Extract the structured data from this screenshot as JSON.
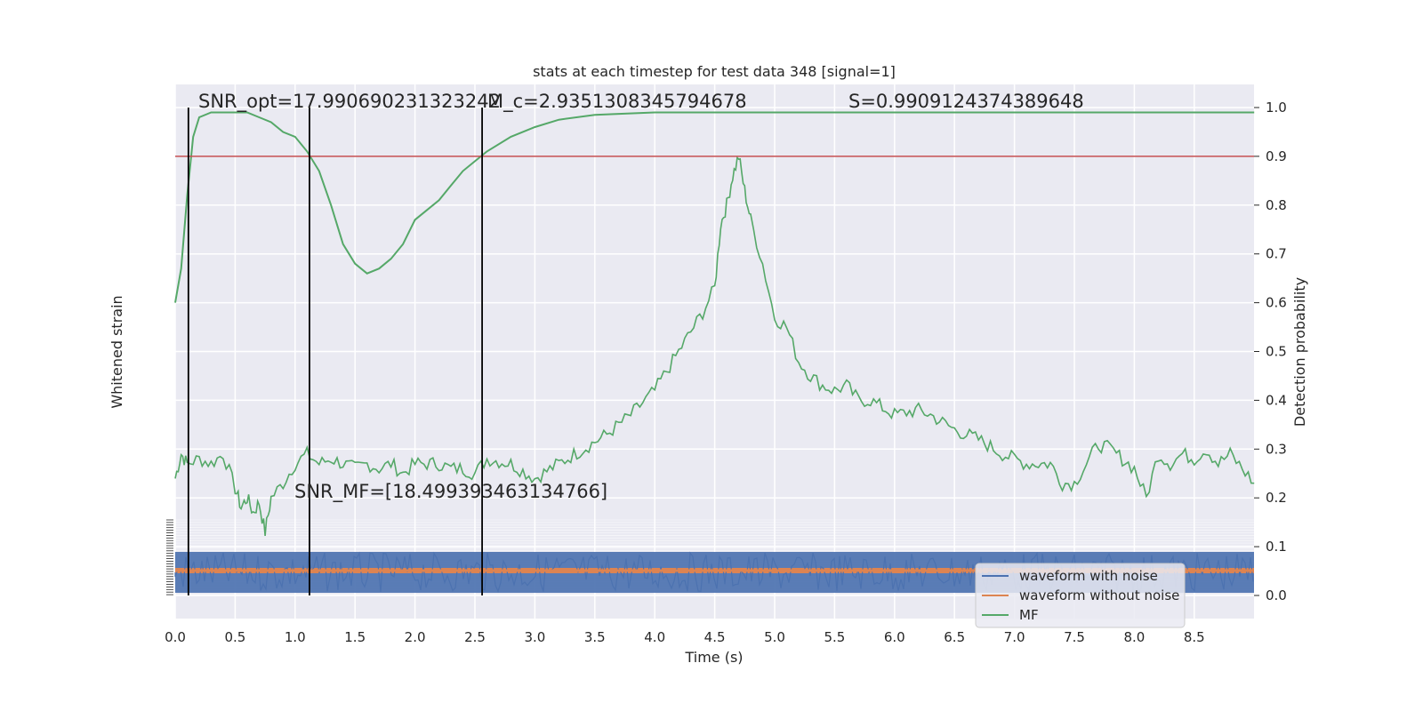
{
  "chart_data": {
    "type": "line",
    "title": "stats at each timestep for test data 348 [signal=1]",
    "xlabel": "Time (s)",
    "ylabel_left": "Whitened strain",
    "ylabel_right": "Detection probability",
    "xlim": [
      0,
      9.0
    ],
    "ylim_right": [
      -0.05,
      1.05
    ],
    "x_ticks": [
      "0.0",
      "0.5",
      "1.0",
      "1.5",
      "2.0",
      "2.5",
      "3.0",
      "3.5",
      "4.0",
      "4.5",
      "5.0",
      "5.5",
      "6.0",
      "6.5",
      "7.0",
      "7.5",
      "8.0",
      "8.5"
    ],
    "y_ticks_right": [
      "0.0",
      "0.1",
      "0.2",
      "0.3",
      "0.4",
      "0.5",
      "0.6",
      "0.7",
      "0.8",
      "0.9",
      "1.0"
    ],
    "threshold": 0.9,
    "threshold_color": "#c44e52",
    "vlines_x": [
      0.11,
      1.12,
      2.56
    ],
    "annotations": {
      "snr_opt": "SNR_opt=17.990690231323242",
      "mc": "M_c=2.9351308345794678",
      "s": "S=0.9909124374389648",
      "snr_mf": "SNR_MF=[18.499393463134766]"
    },
    "legend": [
      "waveform with noise",
      "waveform without noise",
      "MF"
    ],
    "legend_position": "lower-right",
    "grid": true,
    "colors": {
      "noise": "#4c72b0",
      "clean": "#dd8452",
      "mf": "#55a868",
      "background": "#eaeaf2"
    },
    "series": [
      {
        "name": "MF",
        "smooth": true,
        "x": [
          0.0,
          0.05,
          0.1,
          0.15,
          0.2,
          0.3,
          0.4,
          0.5,
          0.6,
          0.7,
          0.8,
          0.9,
          1.0,
          1.1,
          1.2,
          1.3,
          1.4,
          1.5,
          1.6,
          1.7,
          1.8,
          1.9,
          2.0,
          2.1,
          2.2,
          2.3,
          2.4,
          2.5,
          2.6,
          2.8,
          3.0,
          3.2,
          3.5,
          4.0,
          4.5,
          5.0,
          6.0,
          7.0,
          8.0,
          9.0
        ],
        "values": [
          0.6,
          0.67,
          0.82,
          0.94,
          0.98,
          0.99,
          0.99,
          0.99,
          0.99,
          0.98,
          0.97,
          0.95,
          0.94,
          0.91,
          0.87,
          0.8,
          0.72,
          0.68,
          0.66,
          0.67,
          0.69,
          0.72,
          0.77,
          0.79,
          0.81,
          0.84,
          0.87,
          0.89,
          0.91,
          0.94,
          0.96,
          0.975,
          0.985,
          0.99,
          0.99,
          0.99,
          0.99,
          0.99,
          0.99,
          0.99
        ]
      },
      {
        "name": "MF",
        "smooth": false,
        "x": [
          0.0,
          0.05,
          0.1,
          0.2,
          0.3,
          0.4,
          0.5,
          0.55,
          0.6,
          0.65,
          0.7,
          0.75,
          0.8,
          0.9,
          1.0,
          1.1,
          1.2,
          1.3,
          1.4,
          1.5,
          1.6,
          1.7,
          1.8,
          1.9,
          2.0,
          2.1,
          2.2,
          2.3,
          2.4,
          2.5,
          2.6,
          2.8,
          3.0,
          3.2,
          3.4,
          3.6,
          3.8,
          4.0,
          4.2,
          4.4,
          4.5,
          4.55,
          4.6,
          4.65,
          4.7,
          4.75,
          4.8,
          4.9,
          5.0,
          5.1,
          5.2,
          5.3,
          5.4,
          5.5,
          5.6,
          5.7,
          5.8,
          6.0,
          6.2,
          6.3,
          6.5,
          6.7,
          6.9,
          7.1,
          7.3,
          7.4,
          7.5,
          7.6,
          7.7,
          7.8,
          8.0,
          8.1,
          8.2,
          8.3,
          8.4,
          8.5,
          8.6,
          8.7,
          8.8,
          9.0
        ],
        "values": [
          0.24,
          0.29,
          0.27,
          0.28,
          0.27,
          0.29,
          0.22,
          0.18,
          0.2,
          0.17,
          0.19,
          0.13,
          0.2,
          0.23,
          0.27,
          0.29,
          0.27,
          0.28,
          0.27,
          0.26,
          0.27,
          0.26,
          0.27,
          0.25,
          0.27,
          0.27,
          0.27,
          0.26,
          0.26,
          0.25,
          0.28,
          0.27,
          0.24,
          0.27,
          0.3,
          0.33,
          0.37,
          0.42,
          0.5,
          0.58,
          0.63,
          0.76,
          0.8,
          0.86,
          0.9,
          0.83,
          0.77,
          0.68,
          0.57,
          0.55,
          0.48,
          0.45,
          0.43,
          0.42,
          0.43,
          0.4,
          0.4,
          0.37,
          0.38,
          0.37,
          0.34,
          0.32,
          0.29,
          0.27,
          0.27,
          0.23,
          0.23,
          0.27,
          0.31,
          0.3,
          0.26,
          0.2,
          0.29,
          0.27,
          0.29,
          0.28,
          0.3,
          0.27,
          0.29,
          0.23
        ]
      }
    ]
  }
}
